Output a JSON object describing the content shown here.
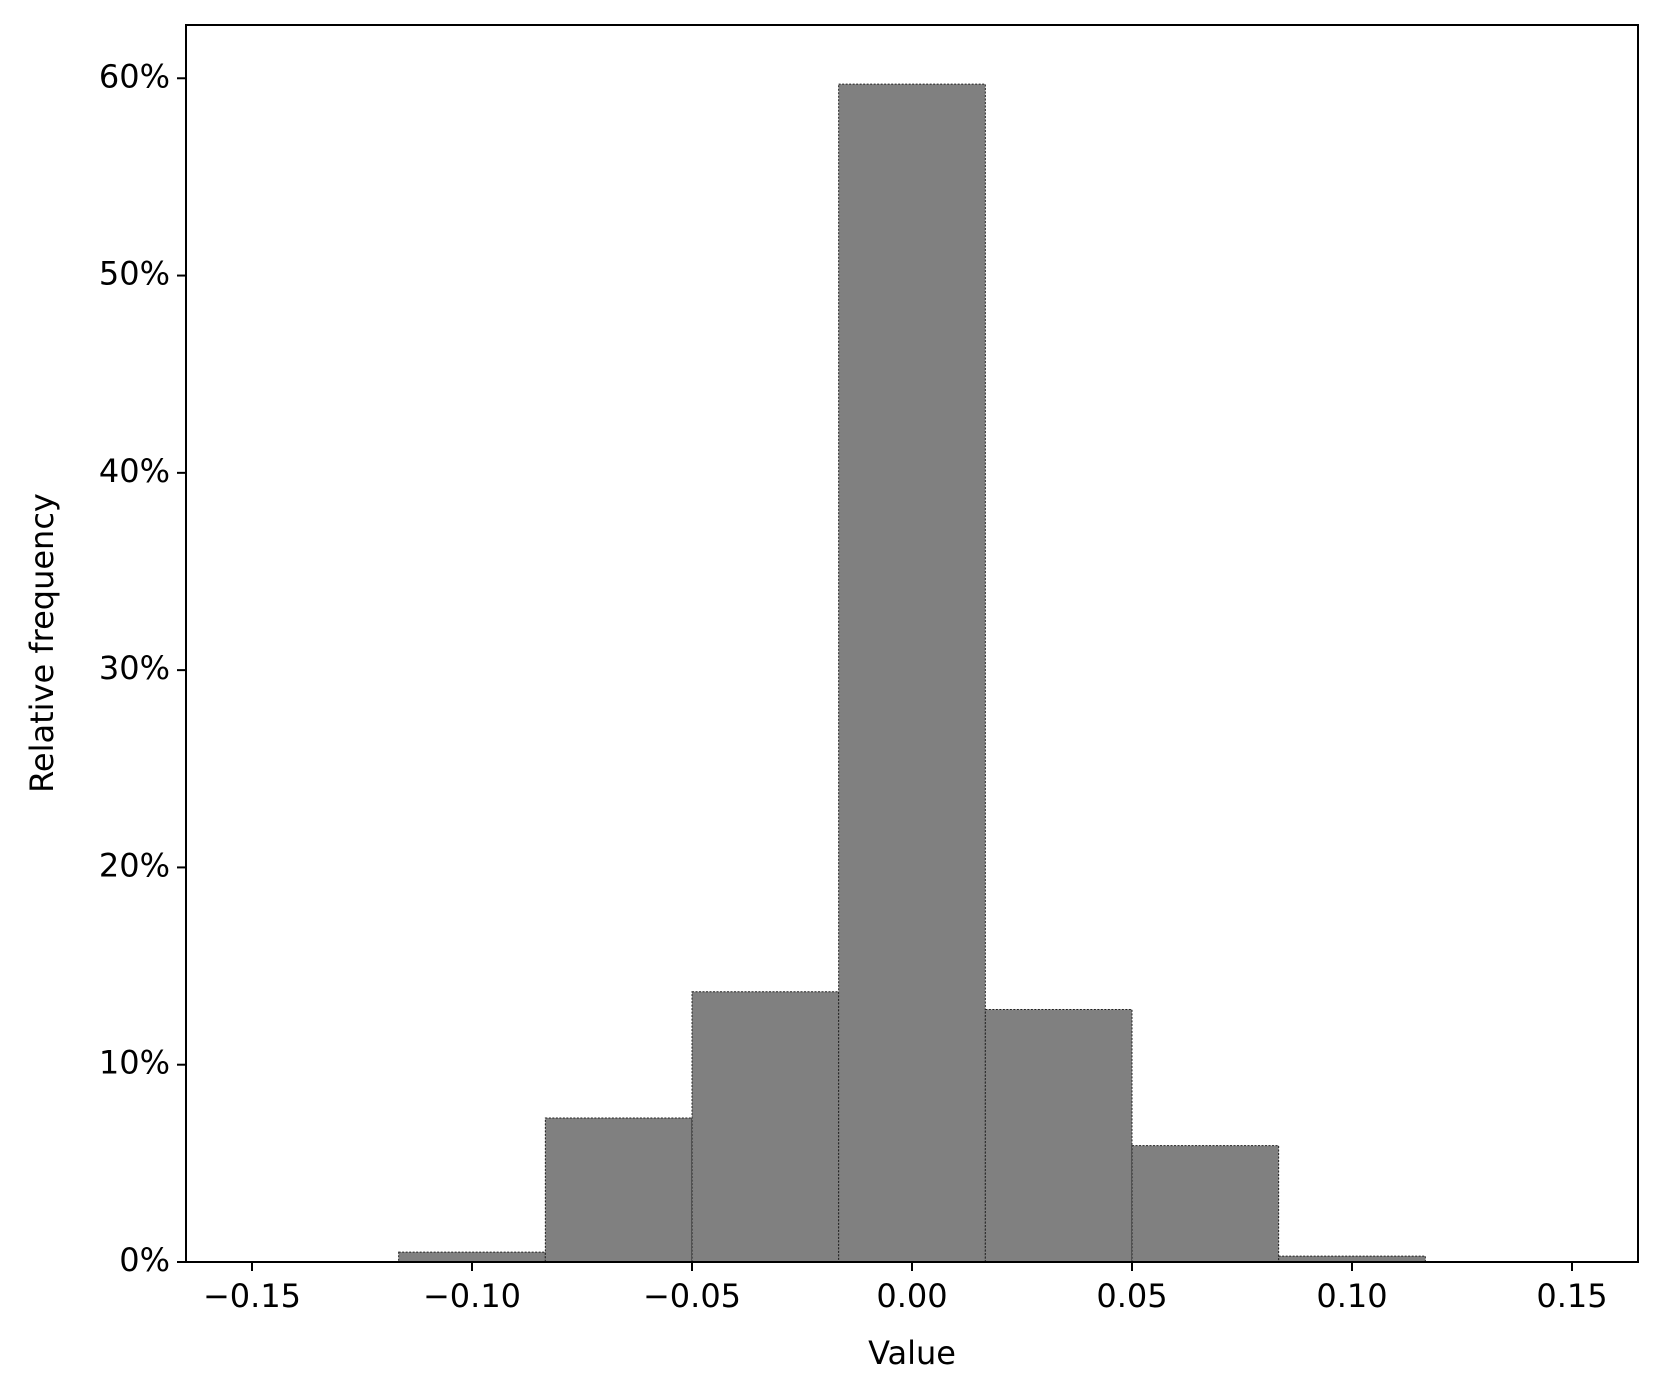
{
  "chart_data": {
    "type": "histogram",
    "x_label": "Value",
    "y_label": "Relative frequency",
    "bins": [
      -0.11667,
      -0.08333,
      -0.05,
      -0.01667,
      0.01667,
      0.05,
      0.08333,
      0.11667
    ],
    "values": [
      0.5,
      7.3,
      13.7,
      59.7,
      12.8,
      5.9,
      0.3
    ],
    "color": "#808080",
    "edge_color": "#222222",
    "xlim": [
      -0.165,
      0.165
    ],
    "xticks": [
      {
        "value": -0.15,
        "label": "−0.15"
      },
      {
        "value": -0.1,
        "label": "−0.10"
      },
      {
        "value": -0.05,
        "label": "−0.05"
      },
      {
        "value": 0,
        "label": "0.00"
      },
      0.05,
      {
        "value": 0.1,
        "label": "0.10"
      },
      0.15
    ],
    "ylim": [
      0,
      62.7
    ],
    "yticks": [
      {
        "value": 0,
        "label": "0%"
      },
      {
        "value": 10,
        "label": "10%"
      },
      {
        "value": 20,
        "label": "20%"
      },
      {
        "value": 30,
        "label": "30%"
      },
      {
        "value": 40,
        "label": "40%"
      },
      {
        "value": 50,
        "label": "50%"
      },
      {
        "value": 60,
        "label": "60%"
      }
    ],
    "grid": false
  }
}
